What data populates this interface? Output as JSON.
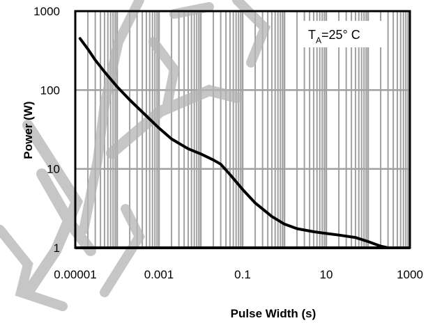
{
  "chart_data": {
    "type": "line",
    "xlabel": "Pulse Width (s)",
    "ylabel": "Power (W)",
    "x_scale": "log",
    "y_scale": "log",
    "xlim": [
      1e-05,
      1000
    ],
    "ylim": [
      1,
      1000
    ],
    "x_ticks": [
      "0.00001",
      "0.001",
      "0.1",
      "10",
      "1000"
    ],
    "y_ticks": [
      "1",
      "10",
      "100",
      "1000"
    ],
    "grid": true,
    "annotation": {
      "main": "T",
      "sub": "A",
      "rest": "=25°  C"
    },
    "series": [
      {
        "x": [
          1.3e-05,
          2e-05,
          3e-05,
          5e-05,
          0.0001,
          0.0002,
          0.0005,
          0.001,
          0.002,
          0.005,
          0.01,
          0.02,
          0.03,
          0.05,
          0.1,
          0.2,
          0.5,
          1,
          2,
          5,
          10,
          20,
          50,
          100,
          200,
          300,
          500
        ],
        "y": [
          450,
          330,
          240,
          170,
          110,
          75,
          47,
          33,
          24,
          18,
          15.5,
          13,
          11.5,
          8.5,
          5.5,
          3.7,
          2.5,
          2.0,
          1.75,
          1.6,
          1.52,
          1.45,
          1.35,
          1.2,
          1.05,
          1.0,
          0.98
        ]
      }
    ],
    "colors": {
      "grid": "#a0a0a0",
      "line": "#000000",
      "frame": "#000000",
      "watermark": "#b4b4b4"
    }
  },
  "watermark": {
    "type": "logo-strokes",
    "color": "#b4b4b4"
  }
}
